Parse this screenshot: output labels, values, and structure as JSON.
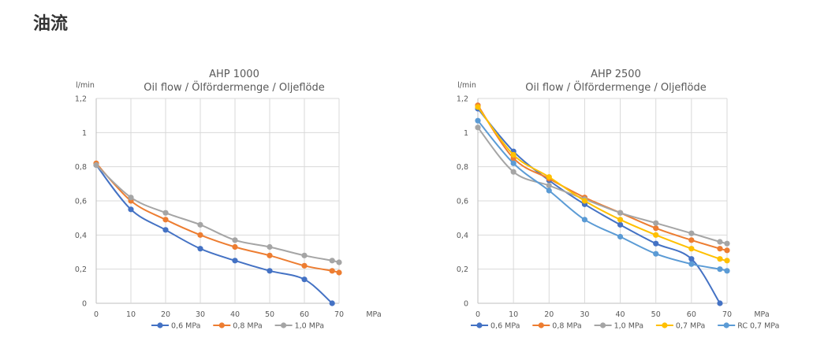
{
  "page": {
    "heading": "油流"
  },
  "chart_data": [
    {
      "type": "line",
      "title": "AHP 1000",
      "subtitle": "Oil flow / Ölfördermenge / Oljeflöde",
      "ylabel": "l/min",
      "xlabel": "MPa",
      "xlim": [
        0,
        70
      ],
      "ylim": [
        0,
        1.2
      ],
      "x_ticks": [
        "0",
        "10",
        "20",
        "30",
        "40",
        "50",
        "60",
        "70"
      ],
      "y_ticks": [
        "0",
        "0,2",
        "0,4",
        "0,6",
        "0,8",
        "1",
        "1,2"
      ],
      "grid": true,
      "legend_position": "bottom",
      "series": [
        {
          "name": "0,6 MPa",
          "color": "#4472C4",
          "x": [
            0,
            10,
            20,
            30,
            40,
            50,
            60,
            68
          ],
          "y": [
            0.81,
            0.55,
            0.43,
            0.32,
            0.25,
            0.19,
            0.14,
            0.0
          ]
        },
        {
          "name": "0,8 MPa",
          "color": "#ED7D31",
          "x": [
            0,
            10,
            20,
            30,
            40,
            50,
            60,
            68,
            70
          ],
          "y": [
            0.82,
            0.6,
            0.49,
            0.4,
            0.33,
            0.28,
            0.22,
            0.19,
            0.18
          ]
        },
        {
          "name": "1,0 MPa",
          "color": "#A5A5A5",
          "x": [
            0,
            10,
            20,
            30,
            40,
            50,
            60,
            68,
            70
          ],
          "y": [
            0.81,
            0.62,
            0.53,
            0.46,
            0.37,
            0.33,
            0.28,
            0.25,
            0.24
          ]
        }
      ]
    },
    {
      "type": "line",
      "title": "AHP 2500",
      "subtitle": "Oil flow / Ölfördermenge / Oljeflöde",
      "ylabel": "l/min",
      "xlabel": "MPa",
      "xlim": [
        0,
        70
      ],
      "ylim": [
        0,
        1.2
      ],
      "x_ticks": [
        "0",
        "10",
        "20",
        "30",
        "40",
        "50",
        "60",
        "70"
      ],
      "y_ticks": [
        "0",
        "0,2",
        "0,4",
        "0,6",
        "0,8",
        "1",
        "1,2"
      ],
      "grid": true,
      "legend_position": "bottom",
      "series": [
        {
          "name": "0,6 MPa",
          "color": "#4472C4",
          "x": [
            0,
            10,
            20,
            30,
            40,
            50,
            60,
            68
          ],
          "y": [
            1.14,
            0.89,
            0.72,
            0.58,
            0.46,
            0.35,
            0.26,
            0.0
          ]
        },
        {
          "name": "0,8 MPa",
          "color": "#ED7D31",
          "x": [
            0,
            10,
            20,
            30,
            40,
            50,
            60,
            68,
            70
          ],
          "y": [
            1.16,
            0.85,
            0.73,
            0.62,
            0.53,
            0.44,
            0.37,
            0.32,
            0.31
          ]
        },
        {
          "name": "1,0 MPa",
          "color": "#A5A5A5",
          "x": [
            0,
            10,
            20,
            30,
            40,
            50,
            60,
            68,
            70
          ],
          "y": [
            1.03,
            0.77,
            0.69,
            0.61,
            0.53,
            0.47,
            0.41,
            0.36,
            0.35
          ]
        },
        {
          "name": "0,7 MPa",
          "color": "#FFC000",
          "x": [
            0,
            10,
            20,
            30,
            40,
            50,
            60,
            68,
            70
          ],
          "y": [
            1.15,
            0.87,
            0.74,
            0.6,
            0.49,
            0.4,
            0.32,
            0.26,
            0.25
          ]
        },
        {
          "name": "RC 0,7 MPa",
          "color": "#5B9BD5",
          "x": [
            0,
            10,
            20,
            30,
            40,
            50,
            60,
            68,
            70
          ],
          "y": [
            1.07,
            0.82,
            0.66,
            0.49,
            0.39,
            0.29,
            0.23,
            0.2,
            0.19
          ]
        }
      ]
    }
  ]
}
